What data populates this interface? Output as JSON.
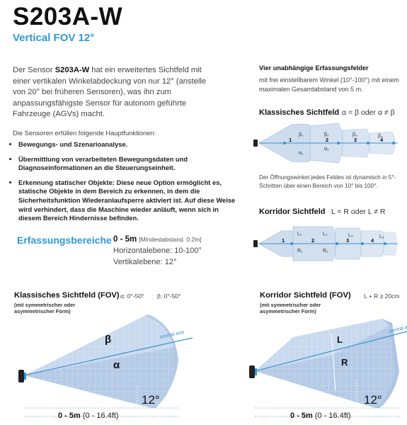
{
  "header": {
    "title": "S203A-W",
    "subtitle": "Vertical FOV 12°"
  },
  "intro": {
    "part1": "Der Sensor ",
    "product": "S203A-W",
    "part2": " hat ein erweitertes Sichtfeld mit einer vertikalen Winkelabdeckung von nur 12° (anstelle von 20° bei früheren Sensoren), was ihn zum anpassungsfähigste Sensor für autonom geführte Fahrzeuge (AGVs) macht.",
    "functions_intro": "Die Sensoren erfüllen folgende Hauptfunktionen:",
    "functions": [
      "Bewegungs- und Szenarioanalyse.",
      "Übermittlung von verarbeiteten Bewegungsdaten und Diagnoseinformationen an die Steuerungseinheit.",
      "Erkennung statischer Objekte: Diese neue Option ermöglicht es, statische Objekte in dem Bereich zu erkennen, in dem die Sicherheitsfunktion Wiederanlaufsperre aktiviert ist. Auf diese Weise wird verhindert, dass die Maschine wieder anläuft, wenn sich in diesem Bereich Hindernisse befinden."
    ]
  },
  "erfassung": {
    "title": "Erfassungsbereiche",
    "range": "0 - 5m",
    "range_note": "[Mindestabstand. 0.2m]",
    "horizontal": "Horizontalebene: 10-100°",
    "vertical": "Vertikalebene: 12°"
  },
  "right_panel": {
    "fields_title": "Vier unabhängige Erfassungsfelder",
    "fields_text": "mit frei einstellbarem Winkel (10°-100°) mit einem maximalen Gesamtabstand von 5 m.",
    "classic_title": "Klassisches Sichtfeld",
    "classic_formula": "α = β oder  α ≠ β",
    "classic_field_numbers": [
      "1",
      "2",
      "3",
      "4"
    ],
    "classic_betas": [
      "β₁",
      "β₂",
      "β₃",
      "β₄"
    ],
    "classic_alphas": [
      "α₁",
      "α₂"
    ],
    "dynamic_text": "Der Öffnungswinkel jedes Feldes ist dynamisch in 5°-Schritten über einen Bereich von 10° bis 100°.",
    "corridor_title": "Korridor Sichtfeld",
    "corridor_formula": "L = R oder  L ≠ R",
    "corridor_field_numbers": [
      "1",
      "2",
      "3",
      "4"
    ],
    "corridor_L": [
      "L₁",
      "L₂",
      "L₃",
      "L₄"
    ],
    "corridor_R": [
      "R₁",
      "R₂"
    ]
  },
  "bottom_left": {
    "title": "Klassisches Sichtfeld (FOV)",
    "alpha_range": "α: 0°-50°",
    "beta_range": "β: 0°-50°",
    "subtitle": "(mit symmetrischer oder asymmetrischer Form)",
    "beta_label": "β",
    "alpha_label": "α",
    "axis_label": "central axis",
    "angle_label": "12°",
    "distance": "0 - 5m",
    "distance_ft": " (0 - 16.4ft)"
  },
  "bottom_right": {
    "title": "Korridor Sichtfeld (FOV)",
    "condition": "L + R ≥ 20cm",
    "subtitle": "(mit symmetrischer oder asymmetrischer Form)",
    "l_label": "L",
    "r_label": "R",
    "axis_label": "central axis",
    "angle_label": "12°",
    "distance": "0 - 5m",
    "distance_ft": " (0 - 16.4ft)"
  },
  "colors": {
    "accent": "#2d9ad6",
    "field_fill": "#c3d6ec",
    "field_edge": "#9dbbe0",
    "axis": "#3a8fd0"
  }
}
